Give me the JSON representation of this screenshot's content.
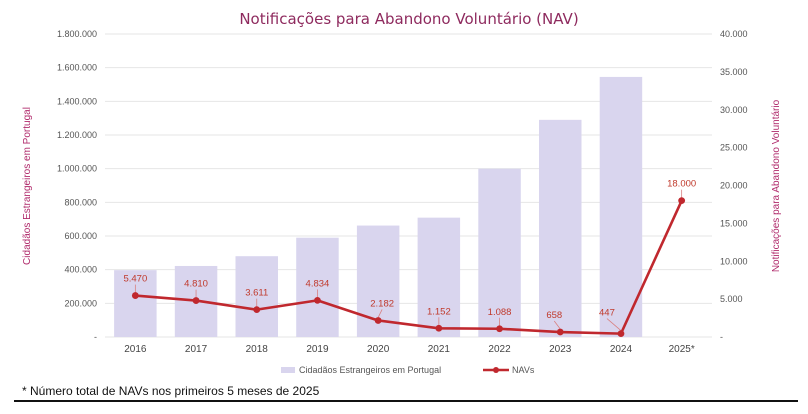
{
  "chart_data": {
    "type": "bar+line",
    "title": "Notificações para Abandono Voluntário (NAV)",
    "categories": [
      "2016",
      "2017",
      "2018",
      "2019",
      "2020",
      "2021",
      "2022",
      "2023",
      "2024",
      "2025*"
    ],
    "ylabel_left": "Cidadãos Estrangeiros em Portugal",
    "ylabel_right": "Notificações para Abandono Voluntário",
    "ylim_left": [
      0,
      1800000
    ],
    "ylim_right": [
      0,
      40000
    ],
    "left_ticks": [
      "-",
      "200.000",
      "400.000",
      "600.000",
      "800.000",
      "1.000.000",
      "1.200.000",
      "1.400.000",
      "1.600.000",
      "1.800.000"
    ],
    "right_ticks": [
      "-",
      "5.000",
      "10.000",
      "15.000",
      "20.000",
      "25.000",
      "30.000",
      "35.000",
      "40.000"
    ],
    "series": [
      {
        "name": "Cidadãos Estrangeiros em Portugal",
        "type": "bar",
        "axis": "left",
        "color": "#d9d5ee",
        "values": [
          397000,
          422000,
          480000,
          590000,
          662000,
          709000,
          1000000,
          1290000,
          1545000,
          null
        ]
      },
      {
        "name": "NAVs",
        "type": "line",
        "axis": "right",
        "color": "#c0282e",
        "values": [
          5470,
          4810,
          3611,
          4834,
          2182,
          1152,
          1088,
          658,
          447,
          18000
        ],
        "labels": [
          "5.470",
          "4.810",
          "3.611",
          "4.834",
          "2.182",
          "1.152",
          "1.088",
          "658",
          "447",
          "18.000"
        ]
      }
    ],
    "legend_position": "bottom",
    "grid": true
  },
  "footnote": "* Número total de NAVs nos primeiros 5 meses de 2025",
  "colors": {
    "title": "#8e2a5e",
    "axis_title": "#b02a6b",
    "bar": "#d9d5ee",
    "line": "#c0282e",
    "data_label": "#c0392b",
    "grid": "#e6e6e6"
  }
}
